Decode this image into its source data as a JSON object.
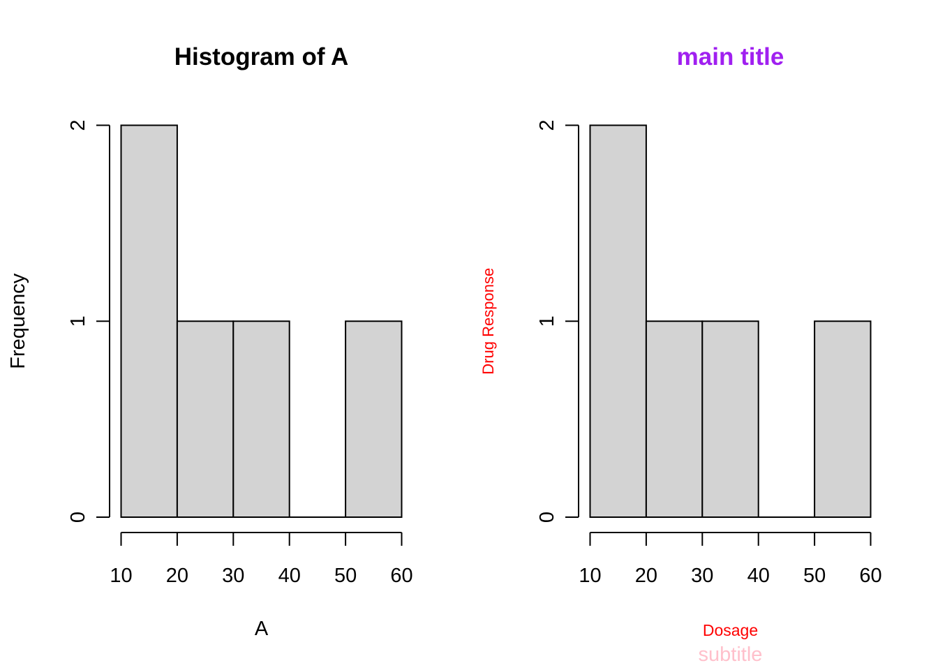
{
  "chart_data": [
    {
      "type": "bar",
      "subtype": "histogram",
      "title": "Histogram of A",
      "subtitle": "",
      "xlabel": "A",
      "ylabel": "Frequency",
      "bins": [
        [
          10,
          20
        ],
        [
          20,
          30
        ],
        [
          30,
          40
        ],
        [
          40,
          50
        ],
        [
          50,
          60
        ]
      ],
      "values": [
        2,
        1,
        1,
        0,
        1
      ],
      "xticks": [
        "10",
        "20",
        "30",
        "40",
        "50",
        "60"
      ],
      "yticks": [
        "0",
        "1",
        "2"
      ],
      "xlim": [
        10,
        60
      ],
      "ylim": [
        0,
        2
      ],
      "grid": false,
      "colors": {
        "title": "#000000",
        "xlabel": "#000000",
        "ylabel": "#000000",
        "subtitle": "#000000",
        "bar_fill": "#d3d3d3",
        "bar_stroke": "#000000"
      }
    },
    {
      "type": "bar",
      "subtype": "histogram",
      "title": "main title",
      "subtitle": "subtitle",
      "xlabel": "Dosage",
      "ylabel": "Drug Response",
      "bins": [
        [
          10,
          20
        ],
        [
          20,
          30
        ],
        [
          30,
          40
        ],
        [
          40,
          50
        ],
        [
          50,
          60
        ]
      ],
      "values": [
        2,
        1,
        1,
        0,
        1
      ],
      "xticks": [
        "10",
        "20",
        "30",
        "40",
        "50",
        "60"
      ],
      "yticks": [
        "0",
        "1",
        "2"
      ],
      "xlim": [
        10,
        60
      ],
      "ylim": [
        0,
        2
      ],
      "grid": false,
      "colors": {
        "title": "#a020f0",
        "xlabel": "#ff0000",
        "ylabel": "#ff0000",
        "subtitle": "#ffc0cb",
        "bar_fill": "#d3d3d3",
        "bar_stroke": "#000000"
      }
    }
  ]
}
